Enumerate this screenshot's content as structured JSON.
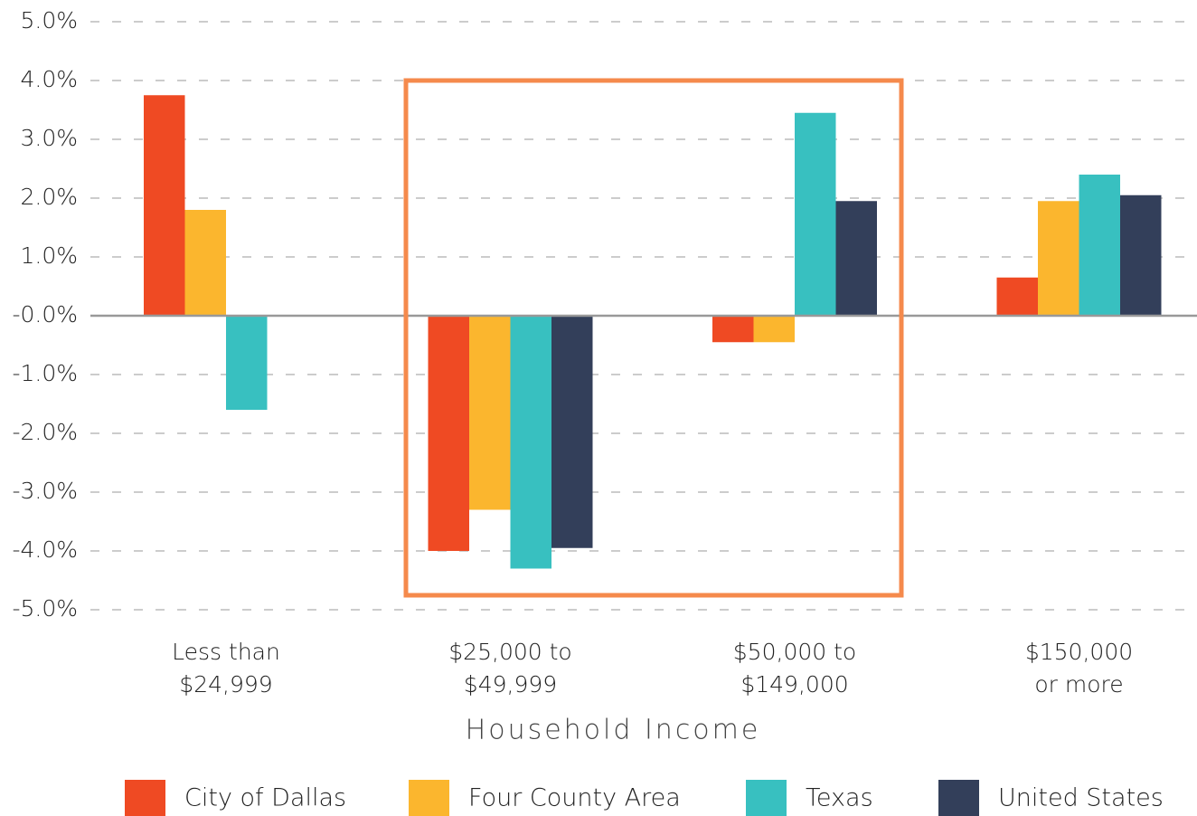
{
  "chart_data": {
    "type": "bar",
    "x_label": "Household Income",
    "categories": [
      [
        "Less than",
        "$24,999"
      ],
      [
        "$25,000 to",
        "$49,999"
      ],
      [
        "$50,000 to",
        "$149,000"
      ],
      [
        "$150,000",
        "or more"
      ]
    ],
    "series": [
      {
        "name": "City of Dallas",
        "color": "#ef4a23",
        "values": [
          3.75,
          -4.0,
          -0.45,
          0.65
        ]
      },
      {
        "name": "Four County Area",
        "color": "#fbb62e",
        "values": [
          1.8,
          -3.3,
          -0.45,
          1.95
        ]
      },
      {
        "name": "Texas",
        "color": "#38c0c0",
        "values": [
          -1.6,
          -4.3,
          3.45,
          2.4
        ]
      },
      {
        "name": "United States",
        "color": "#333f5a",
        "values": [
          null,
          -3.95,
          1.95,
          2.05
        ]
      }
    ],
    "ylim": [
      -5,
      5
    ],
    "yticks": [
      {
        "value": 5,
        "label": "5.0%"
      },
      {
        "value": 4,
        "label": "4.0%"
      },
      {
        "value": 3,
        "label": "3.0%"
      },
      {
        "value": 2,
        "label": "2.0%"
      },
      {
        "value": 1,
        "label": "1.0%"
      },
      {
        "value": 0,
        "label": "-0.0%"
      },
      {
        "value": -1,
        "label": "-1.0%"
      },
      {
        "value": -2,
        "label": "-2.0%"
      },
      {
        "value": -3,
        "label": "-3.0%"
      },
      {
        "value": -4,
        "label": "-4.0%"
      },
      {
        "value": -5,
        "label": "-5.0%"
      }
    ],
    "grid": true
  }
}
